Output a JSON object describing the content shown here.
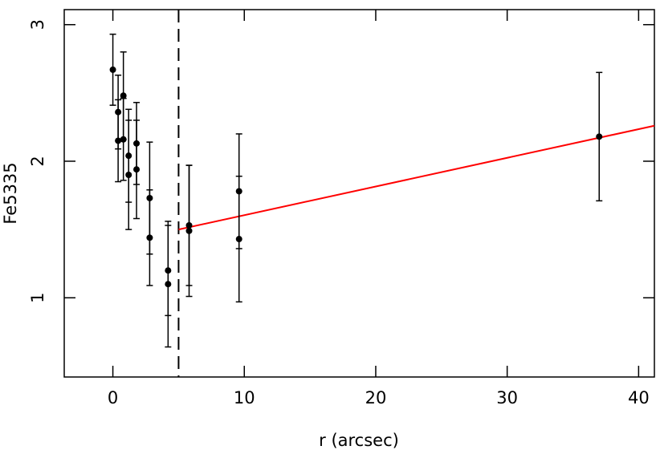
{
  "chart_data": {
    "type": "scatter",
    "xlabel": "r (arcsec)",
    "ylabel": "Fe5335",
    "xlim": [
      -3.7,
      41.2
    ],
    "ylim": [
      0.42,
      3.11
    ],
    "xticks": [
      0,
      10,
      20,
      30,
      40
    ],
    "yticks": [
      1,
      2,
      3
    ],
    "series": [
      {
        "color": "#000000",
        "x": [
          0,
          0.4,
          0.4,
          0.8,
          0.8,
          1.2,
          1.2,
          1.8,
          1.8,
          2.8,
          2.8,
          4.2,
          4.2,
          5.8,
          5.8,
          9.6,
          9.6,
          37
        ],
        "y": [
          2.67,
          2.36,
          2.15,
          2.48,
          2.16,
          2.04,
          1.9,
          2.13,
          1.94,
          1.73,
          1.44,
          1.2,
          1.1,
          1.53,
          1.49,
          1.78,
          1.43,
          2.18
        ],
        "err": [
          0.26,
          0.27,
          0.3,
          0.32,
          0.3,
          0.34,
          0.4,
          0.3,
          0.36,
          0.41,
          0.35,
          0.33,
          0.46,
          0.44,
          0.48,
          0.42,
          0.46,
          0.47
        ]
      }
    ],
    "fit": {
      "x": [
        5,
        41.2
      ],
      "y": [
        1.5,
        2.26
      ],
      "color": "#ff0000"
    },
    "vline": 5
  }
}
